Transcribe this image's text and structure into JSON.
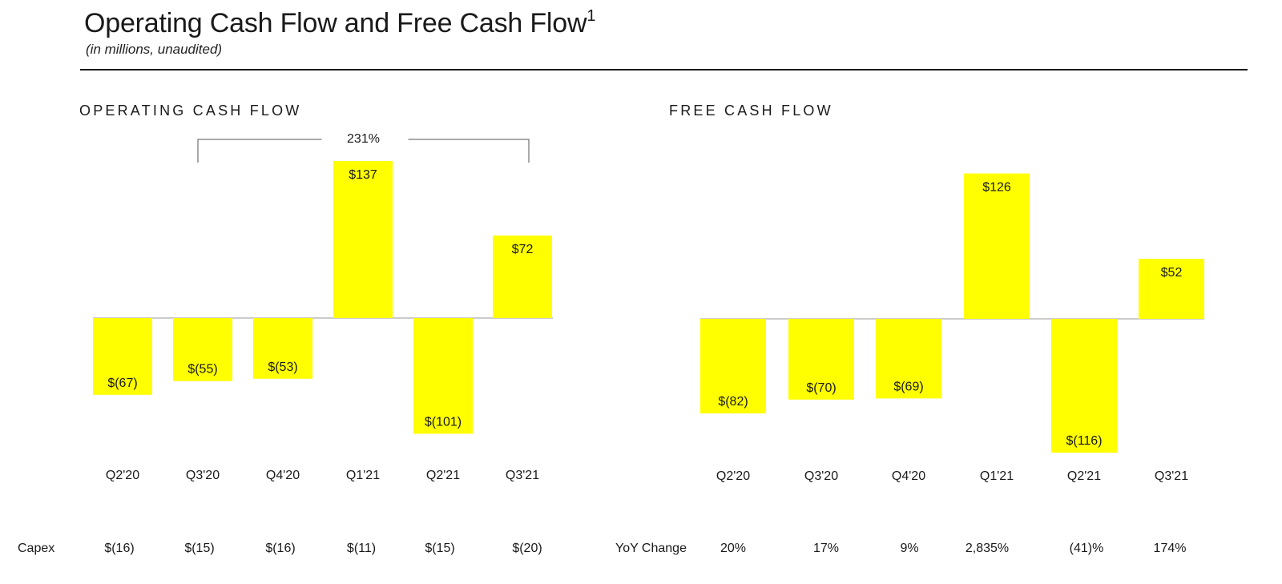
{
  "header": {
    "title": "Operating Cash Flow and Free Cash Flow",
    "title_footnote": "1",
    "subtitle": "(in millions, unaudited)"
  },
  "colors": {
    "bar": "#ffff00",
    "text": "#1a1a1a",
    "axis": "#999999"
  },
  "chart_data": [
    {
      "type": "bar",
      "title": "OPERATING CASH FLOW",
      "categories": [
        "Q2'20",
        "Q3'20",
        "Q4'20",
        "Q1'21",
        "Q2'21",
        "Q3'21"
      ],
      "values": [
        -67,
        -55,
        -53,
        137,
        -101,
        72
      ],
      "data_labels": [
        "$(67)",
        "$(55)",
        "$(53)",
        "$137",
        "$(101)",
        "$72"
      ],
      "annotation": {
        "text": "231%",
        "from": "Q3'20",
        "to": "Q3'21"
      },
      "bottom_row": {
        "label": "Capex",
        "values": [
          "$(16)",
          "$(15)",
          "$(16)",
          "$(11)",
          "$(15)",
          "$(20)"
        ]
      }
    },
    {
      "type": "bar",
      "title": "FREE CASH FLOW",
      "categories": [
        "Q2'20",
        "Q3'20",
        "Q4'20",
        "Q1'21",
        "Q2'21",
        "Q3'21"
      ],
      "values": [
        -82,
        -70,
        -69,
        126,
        -116,
        52
      ],
      "data_labels": [
        "$(82)",
        "$(70)",
        "$(69)",
        "$126",
        "$(116)",
        "$52"
      ],
      "bottom_row": {
        "label": "YoY Change",
        "values": [
          "20%",
          "17%",
          "9%",
          "2,835%",
          "(41)%",
          "174%"
        ]
      }
    }
  ]
}
